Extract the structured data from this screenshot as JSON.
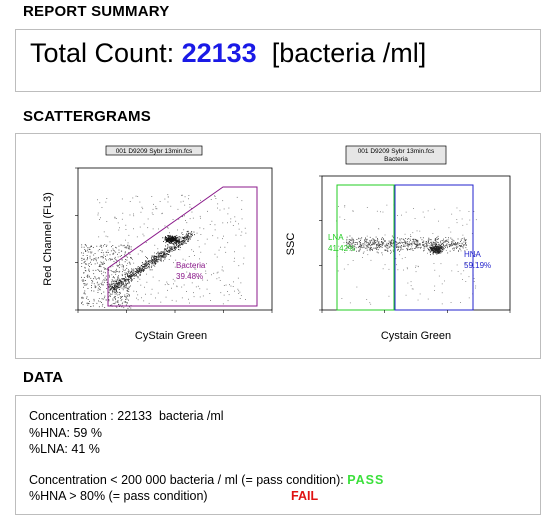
{
  "report_summary": {
    "title": "REPORT SUMMARY",
    "total_count_label": "Total Count:",
    "total_count_value": "22133",
    "total_count_unit": "[bacteria /ml]"
  },
  "scattergrams": {
    "title": "SCATTERGRAMS",
    "plot1": {
      "title": "001 D9209 Sybr 13min.fcs",
      "xlabel": "CyStain Green",
      "ylabel": "Red Channel (FL3)",
      "gate_name": "Bacteria",
      "gate_pct": "39.48%",
      "gate_color": "#8b1a8b"
    },
    "plot2": {
      "title_line1": "001 D9209 Sybr 13min.fcs",
      "title_line2": "Bacteria",
      "xlabel": "Cystain Green",
      "ylabel": "SSC",
      "gate1_name": "LNA",
      "gate1_pct": "41.42%",
      "gate1_color": "#22cc22",
      "gate2_name": "HNA",
      "gate2_pct": "59.19%",
      "gate2_color": "#2222cc"
    }
  },
  "data_section": {
    "title": "DATA",
    "concentration": "Concentration : 22133  bacteria /ml",
    "hna": "%HNA: 59 %",
    "lna": "%LNA: 41 %",
    "cond1_text": "Concentration < 200 000 bacteria / ml (= pass condition): ",
    "cond1_result": "PASS",
    "cond2_text": "%HNA > 80% (= pass condition)",
    "cond2_result": "FAIL"
  }
}
